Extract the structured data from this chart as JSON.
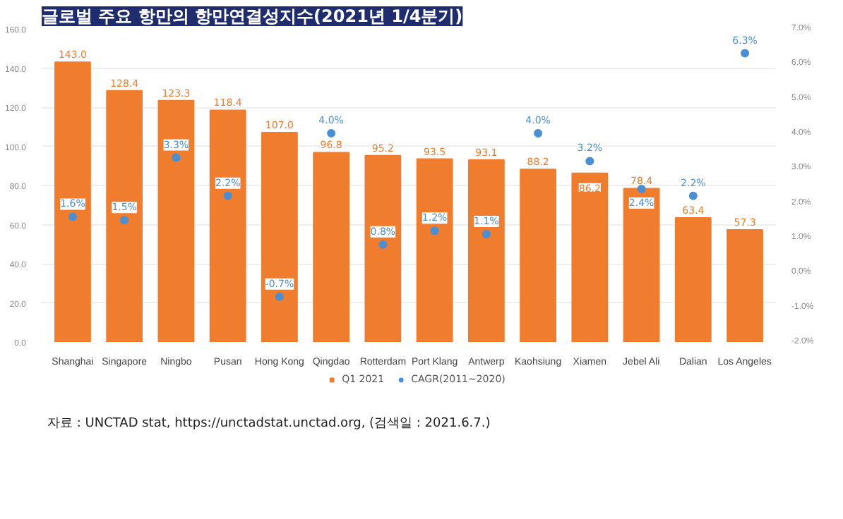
{
  "chart_data": {
    "type": "bar",
    "title": "글로벌 주요 항만의 항만연결성지수(2021년 1/4분기)",
    "categories": [
      "Shanghai",
      "Singapore",
      "Ningbo",
      "Pusan",
      "Hong Kong",
      "Qingdao",
      "Rotterdam",
      "Port Klang",
      "Antwerp",
      "Kaohsiung",
      "Xiamen",
      "Jebel Ali",
      "Dalian",
      "Los Angeles"
    ],
    "series": [
      {
        "name": "Q1 2021",
        "color": "#f07c2e",
        "values": [
          143.0,
          128.4,
          123.3,
          118.4,
          107.0,
          96.8,
          95.2,
          93.5,
          93.1,
          88.2,
          86.2,
          78.4,
          63.4,
          57.3
        ],
        "value_labels": [
          "143.0",
          "128.4",
          "123.3",
          "118.4",
          "107.0",
          "96.8",
          "95.2",
          "93.5",
          "93.1",
          "88.2",
          "86.2",
          "78.4",
          "63.4",
          "57.3"
        ]
      },
      {
        "name": "CAGR(2011~2020)",
        "type": "scatter",
        "axis": "y2",
        "color": "#4a8fd4",
        "values": [
          1.6,
          1.5,
          3.3,
          2.2,
          -0.7,
          4.0,
          0.8,
          1.2,
          1.1,
          4.0,
          3.2,
          2.4,
          2.2,
          6.3
        ],
        "value_labels": [
          "1.6%",
          "1.5%",
          "3.3%",
          "2.2%",
          "-0.7%",
          "4.0%",
          "0.8%",
          "1.2%",
          "1.1%",
          "4.0%",
          "3.2%",
          "2.4%",
          "2.2%",
          "6.3%"
        ]
      }
    ],
    "ylim": [
      0,
      160
    ],
    "yticks": [
      {
        "value": 0,
        "label": "0.0"
      },
      {
        "value": 20,
        "label": "20.0"
      },
      {
        "value": 40,
        "label": "40.0"
      },
      {
        "value": 60,
        "label": "60.0"
      },
      {
        "value": 80,
        "label": "80.0"
      },
      {
        "value": 100,
        "label": "100.0"
      },
      {
        "value": 120,
        "label": "120.0"
      },
      {
        "value": 140,
        "label": "140.0"
      },
      {
        "value": 160,
        "label": "160.0"
      }
    ],
    "y2lim": [
      -2,
      7
    ],
    "y2ticks": [
      {
        "value": -2,
        "label": "-2.0%"
      },
      {
        "value": -1,
        "label": "-1.0%"
      },
      {
        "value": 0,
        "label": "0.0%"
      },
      {
        "value": 1,
        "label": "1.0%"
      },
      {
        "value": 2,
        "label": "2.0%"
      },
      {
        "value": 3,
        "label": "3.0%"
      },
      {
        "value": 4,
        "label": "4.0%"
      },
      {
        "value": 5,
        "label": "5.0%"
      },
      {
        "value": 6,
        "label": "6.0%"
      },
      {
        "value": 7,
        "label": "7.0%"
      }
    ],
    "grid": "y",
    "legend": "bottom",
    "marker": "circle",
    "annotations": [
      "자료 : UNCTAD stat, https://unctadstat.unctad.org, (검색일 : 2021.6.7.)"
    ]
  }
}
